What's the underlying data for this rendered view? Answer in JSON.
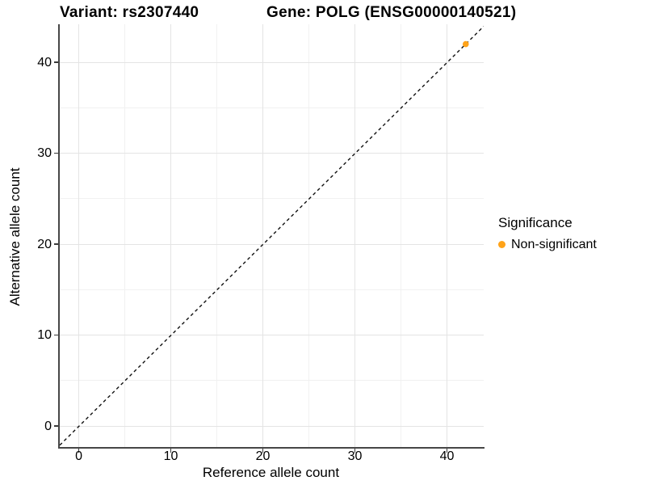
{
  "chart_data": {
    "type": "scatter",
    "title_left": "Variant: rs2307440",
    "title_right": "Gene: POLG (ENSG00000140521)",
    "xlabel": "Reference allele count",
    "ylabel": "Alternative allele count",
    "xlim": [
      -2.11,
      43.95
    ],
    "ylim": [
      -2.31,
      44.18
    ],
    "x_ticks": [
      0,
      10,
      20,
      30,
      40
    ],
    "y_ticks": [
      0,
      10,
      20,
      30,
      40
    ],
    "x_minor_ticks": [
      5,
      15,
      25,
      35
    ],
    "y_minor_ticks": [
      5,
      15,
      25,
      35
    ],
    "grid": {
      "major_color": "#e4e4e4",
      "minor_color": "#f1f1f1",
      "background": "#ffffff"
    },
    "identity_line": {
      "equation": "y = x",
      "style": "dashed",
      "color": "#111111"
    },
    "series": [
      {
        "name": "Non-significant",
        "color": "#FFA319",
        "points": [
          {
            "x": 42,
            "y": 42
          }
        ]
      }
    ],
    "legend": {
      "title": "Significance",
      "position": "right",
      "entries": [
        {
          "label": "Non-significant",
          "color": "#FFA319"
        }
      ]
    }
  }
}
